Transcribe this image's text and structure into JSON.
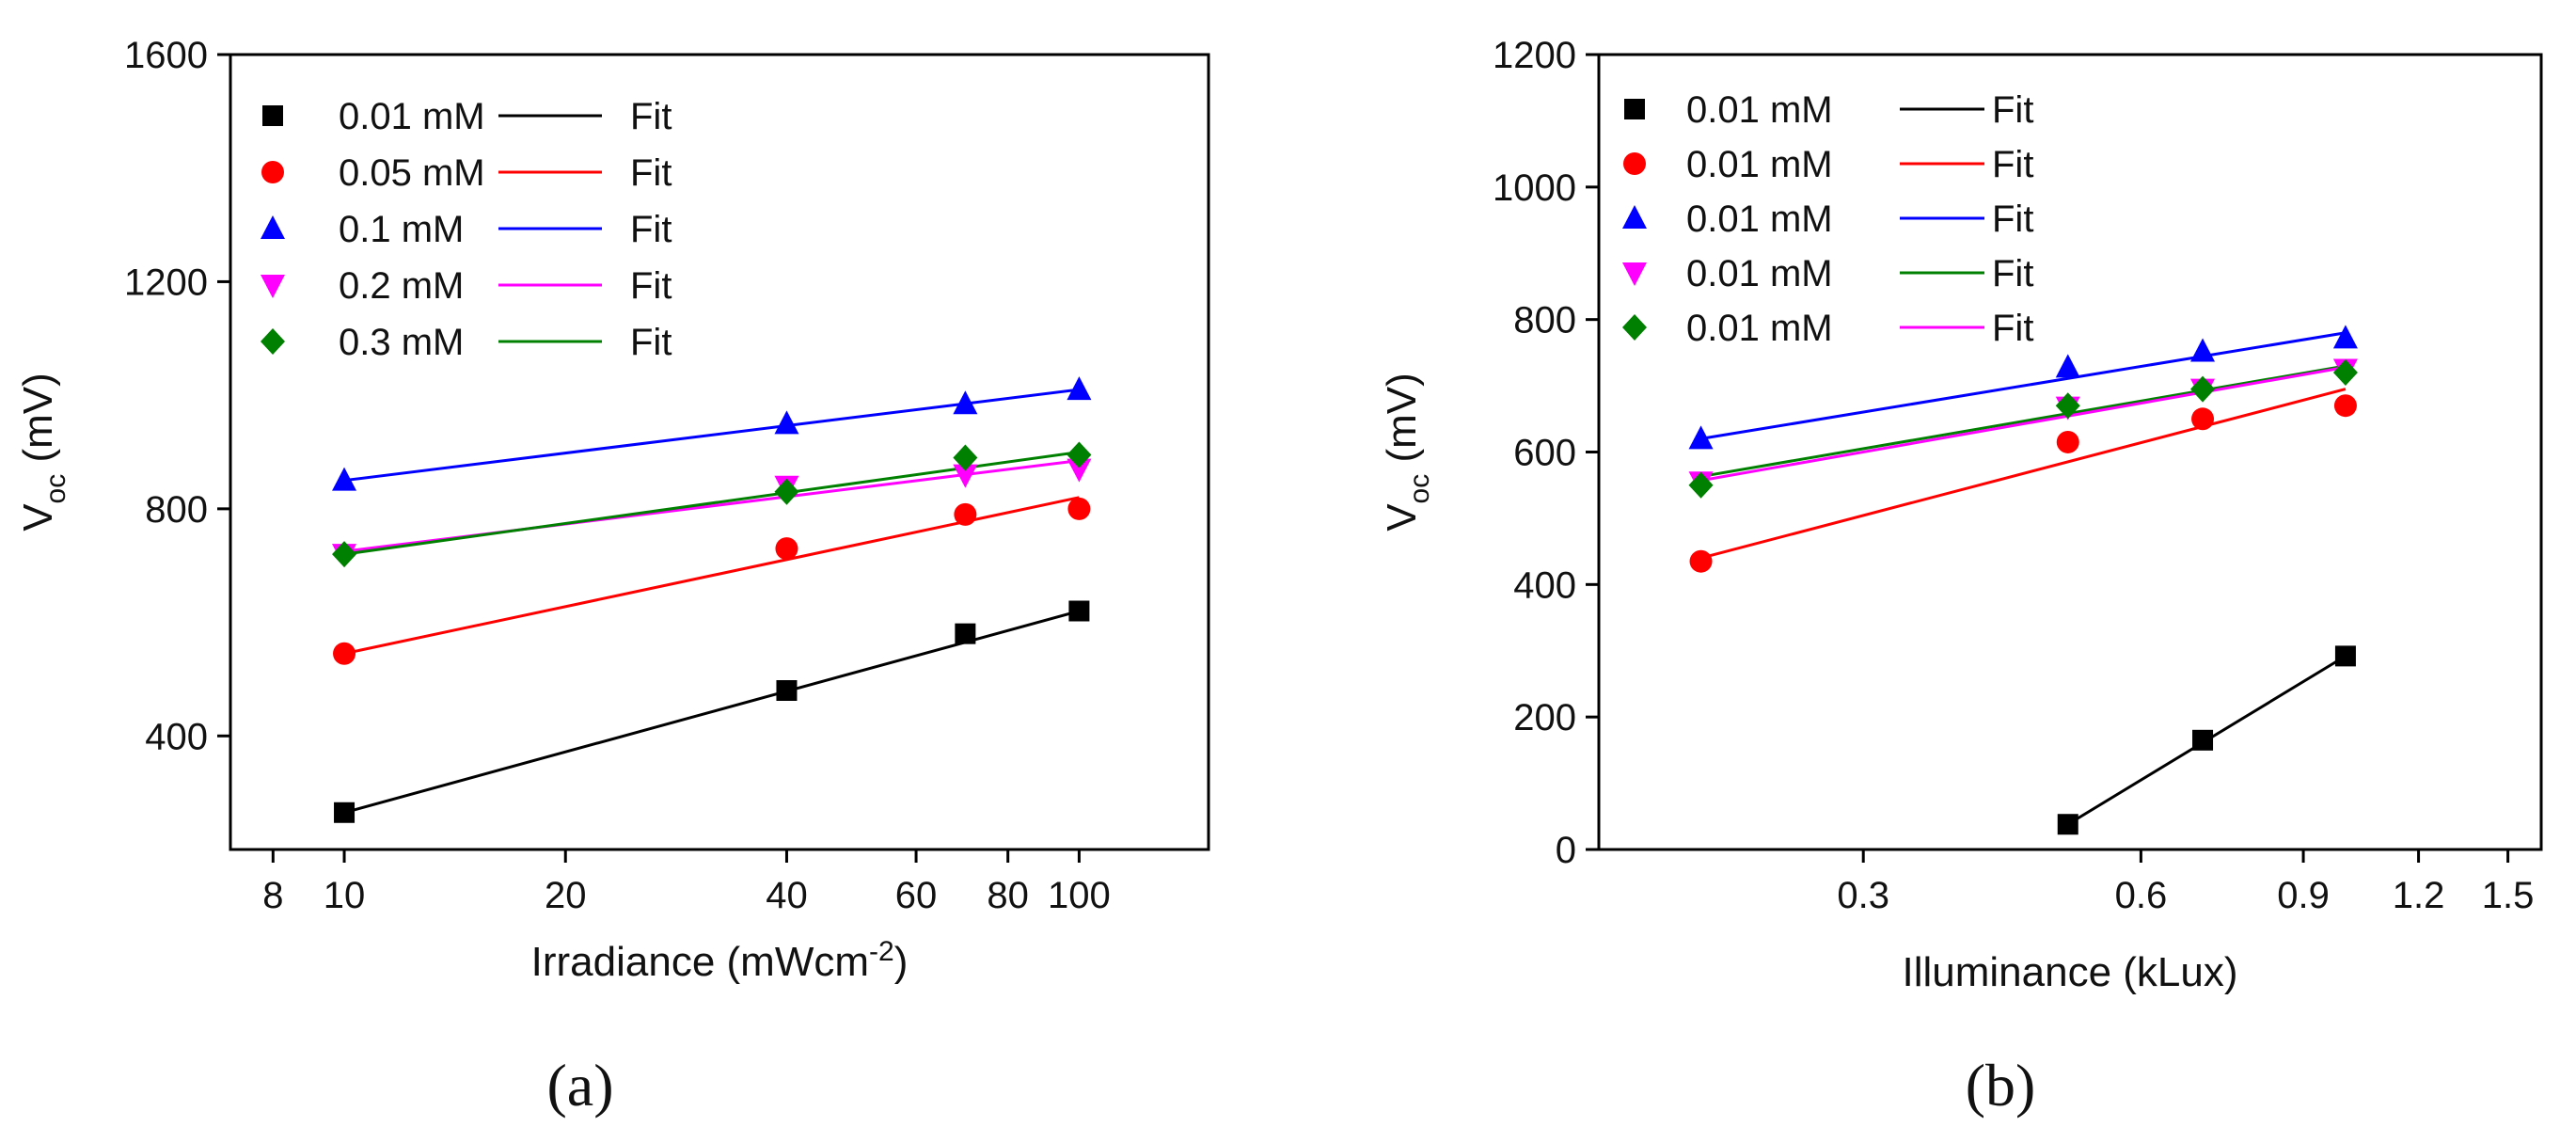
{
  "figure": {
    "panel_a_label": "(a)",
    "panel_b_label": "(b)"
  },
  "chart_data": [
    {
      "id": "a",
      "type": "scatter",
      "xscale": "log",
      "xlim": [
        7.0,
        150
      ],
      "ylim": [
        200,
        1600
      ],
      "xticks": [
        8,
        10,
        20,
        40,
        60,
        80,
        100
      ],
      "xtick_labels": [
        "8",
        "10",
        "20",
        "40",
        "60",
        "80",
        "100"
      ],
      "yticks": [
        400,
        800,
        1200,
        1600
      ],
      "ytick_labels": [
        "400",
        "800",
        "1200",
        "1600"
      ],
      "xlabel": {
        "main": "Irradiance (mWcm",
        "sup": "-2",
        "tail": ")"
      },
      "ylabel": {
        "main": "V",
        "sub": "oc",
        "tail": " (mV)"
      },
      "legend_position": "top-left",
      "series": [
        {
          "name": "0.01 mM",
          "fit_label": "Fit",
          "marker": "square",
          "color": "#000000",
          "x": [
            10,
            40,
            70,
            100
          ],
          "y": [
            265,
            480,
            580,
            620
          ],
          "fit": [
            265,
            620
          ]
        },
        {
          "name": "0.05 mM",
          "fit_label": "Fit",
          "marker": "circle",
          "color": "#ff0000",
          "x": [
            10,
            40,
            70,
            100
          ],
          "y": [
            545,
            730,
            790,
            800
          ],
          "fit": [
            545,
            820
          ]
        },
        {
          "name": "0.1 mM",
          "fit_label": "Fit",
          "marker": "triangle-up",
          "color": "#0000ff",
          "x": [
            10,
            40,
            70,
            100
          ],
          "y": [
            850,
            950,
            985,
            1010
          ],
          "fit": [
            850,
            1010
          ]
        },
        {
          "name": "0.2 mM",
          "fit_label": "Fit",
          "marker": "triangle-down",
          "color": "#ff00ff",
          "x": [
            10,
            40,
            70,
            100
          ],
          "y": [
            720,
            840,
            860,
            870
          ],
          "fit": [
            725,
            885
          ]
        },
        {
          "name": "0.3 mM",
          "fit_label": "Fit",
          "marker": "diamond",
          "color": "#008000",
          "x": [
            10,
            40,
            70,
            100
          ],
          "y": [
            720,
            830,
            890,
            895
          ],
          "fit": [
            720,
            900
          ]
        }
      ]
    },
    {
      "id": "b",
      "type": "scatter",
      "xscale": "log",
      "xlim": [
        0.155,
        1.63
      ],
      "ylim": [
        0,
        1200
      ],
      "xticks": [
        0.3,
        0.6,
        0.9,
        1.2,
        1.5
      ],
      "xtick_labels": [
        "0.3",
        "0.6",
        "0.9",
        "1.2",
        "1.5"
      ],
      "yticks": [
        0,
        200,
        400,
        600,
        800,
        1000,
        1200
      ],
      "ytick_labels": [
        "0",
        "200",
        "400",
        "600",
        "800",
        "1000",
        "1200"
      ],
      "xlabel": {
        "main": "Illuminance (kLux)",
        "sup": "",
        "tail": ""
      },
      "ylabel": {
        "main": "V",
        "sub": "oc",
        "tail": " (mV)"
      },
      "legend_position": "top-left",
      "series": [
        {
          "name": "0.01 mM",
          "fit_label": "Fit",
          "marker": "square",
          "color": "#000000",
          "fit_color": "#000000",
          "x": [
            0.5,
            0.7,
            1.0
          ],
          "y": [
            38,
            165,
            292
          ],
          "fit_x": [
            0.5,
            1.0
          ],
          "fit": [
            38,
            292
          ]
        },
        {
          "name": "0.01 mM",
          "fit_label": "Fit",
          "marker": "circle",
          "color": "#ff0000",
          "fit_color": "#ff0000",
          "x": [
            0.2,
            0.5,
            0.7,
            1.0
          ],
          "y": [
            435,
            615,
            650,
            670
          ],
          "fit_x": [
            0.2,
            1.0
          ],
          "fit": [
            440,
            695
          ]
        },
        {
          "name": "0.01 mM",
          "fit_label": "Fit",
          "marker": "triangle-up",
          "color": "#0000ff",
          "fit_color": "#0000ff",
          "x": [
            0.2,
            0.5,
            0.7,
            1.0
          ],
          "y": [
            620,
            728,
            752,
            772
          ],
          "fit_x": [
            0.2,
            1.0
          ],
          "fit": [
            620,
            780
          ]
        },
        {
          "name": "0.01 mM",
          "fit_label": "Fit",
          "marker": "triangle-down",
          "color": "#ff00ff",
          "fit_color": "#008000",
          "x": [
            0.2,
            0.5,
            0.7,
            1.0
          ],
          "y": [
            555,
            668,
            695,
            725
          ],
          "fit_x": [
            0.2,
            1.0
          ],
          "fit": [
            563,
            730
          ]
        },
        {
          "name": "0.01 mM",
          "fit_label": "Fit",
          "marker": "diamond",
          "color": "#008000",
          "fit_color": "#ff00ff",
          "x": [
            0.2,
            0.5,
            0.7,
            1.0
          ],
          "y": [
            550,
            670,
            695,
            720
          ],
          "fit_x": [
            0.2,
            1.0
          ],
          "fit": [
            557,
            728
          ]
        }
      ]
    }
  ]
}
